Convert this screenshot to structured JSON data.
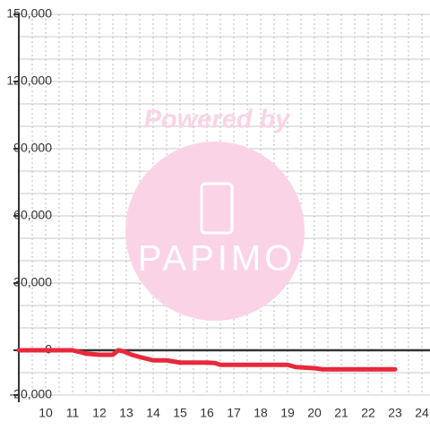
{
  "chart_data": {
    "type": "line",
    "watermark": {
      "line1": "Powered by",
      "line2": "PAPIMO"
    },
    "x": [
      9,
      10,
      11,
      11.5,
      12,
      12.5,
      12.7,
      12.9,
      13.2,
      13.5,
      14,
      14.5,
      15,
      15.5,
      16,
      16.3,
      16.5,
      17,
      18,
      19,
      19.3,
      20,
      20.3,
      21,
      22,
      23
    ],
    "series": [
      {
        "color": "#e8283c",
        "values": [
          0,
          0,
          0,
          -1500,
          -2000,
          -2000,
          0,
          -500,
          -2000,
          -3000,
          -4500,
          -4500,
          -5500,
          -5500,
          -5500,
          -5700,
          -6500,
          -6500,
          -6500,
          -6500,
          -7500,
          -8000,
          -8500,
          -8500,
          -8500,
          -8500
        ]
      }
    ],
    "xlim": [
      9,
      24.3
    ],
    "ylim": [
      -20000,
      150000
    ],
    "xticks": [
      10,
      11,
      12,
      13,
      14,
      15,
      16,
      17,
      18,
      19,
      20,
      21,
      22,
      23,
      24
    ],
    "yticks": [
      {
        "value": 150000,
        "label": "150,000"
      },
      {
        "value": 120000,
        "label": "120,000"
      },
      {
        "value": 90000,
        "label": "90,000"
      },
      {
        "value": 60000,
        "label": "60,000"
      },
      {
        "value": 30000,
        "label": "30,000"
      },
      0,
      {
        "value": -20000,
        "label": "-20,000"
      }
    ],
    "y_gridlines": [
      -20000,
      -10000,
      10000,
      20000,
      30000,
      40000,
      50000,
      60000,
      70000,
      80000,
      90000,
      100000,
      110000,
      120000,
      130000,
      140000,
      150000
    ],
    "x_gridlines": [
      9.5,
      10,
      10.5,
      11,
      11.5,
      12,
      12.5,
      13,
      13.5,
      14,
      14.5,
      15,
      15.5,
      16,
      16.5,
      17,
      17.5,
      18,
      18.5,
      19,
      19.5,
      20,
      20.5,
      21,
      21.5,
      22,
      22.5,
      23,
      23.5,
      24
    ],
    "grid": true
  }
}
